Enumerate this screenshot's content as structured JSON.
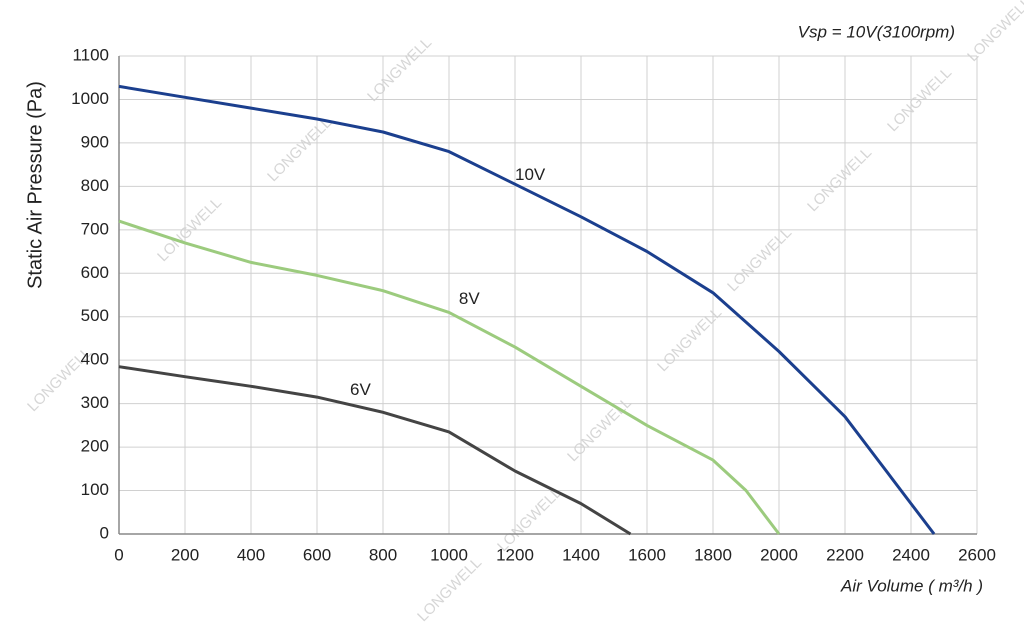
{
  "chart_data": {
    "type": "line",
    "annotation": "Vsp = 10V(3100rpm)",
    "x_label": "Air Volume ( m³/h )",
    "y_label": "Static Air Pressure  (Pa)",
    "watermark": "LONGWELL",
    "xlim": [
      0,
      2600
    ],
    "xticks": [
      0,
      200,
      400,
      600,
      800,
      1000,
      1200,
      1400,
      1600,
      1800,
      2000,
      2200,
      2400,
      2600
    ],
    "ylim": [
      0,
      1100
    ],
    "yticks": [
      0,
      100,
      200,
      300,
      400,
      500,
      600,
      700,
      800,
      900,
      1000,
      1100
    ],
    "grid": true,
    "series": [
      {
        "name": "10V",
        "color": "#1b3f8e",
        "x": [
          0,
          200,
          400,
          600,
          800,
          1000,
          1200,
          1400,
          1600,
          1800,
          2000,
          2200,
          2300,
          2400,
          2470
        ],
        "values": [
          1030,
          1005,
          980,
          955,
          925,
          880,
          805,
          730,
          650,
          555,
          420,
          270,
          170,
          70,
          0
        ]
      },
      {
        "name": "8V",
        "color": "#9ccb7e",
        "x": [
          0,
          200,
          400,
          600,
          800,
          1000,
          1200,
          1400,
          1600,
          1800,
          1900,
          2000
        ],
        "values": [
          720,
          670,
          625,
          595,
          560,
          510,
          430,
          340,
          250,
          170,
          100,
          0
        ]
      },
      {
        "name": "6V",
        "color": "#444444",
        "x": [
          0,
          200,
          400,
          600,
          800,
          1000,
          1200,
          1400,
          1550
        ],
        "values": [
          385,
          362,
          340,
          315,
          280,
          235,
          145,
          70,
          0
        ]
      }
    ]
  }
}
